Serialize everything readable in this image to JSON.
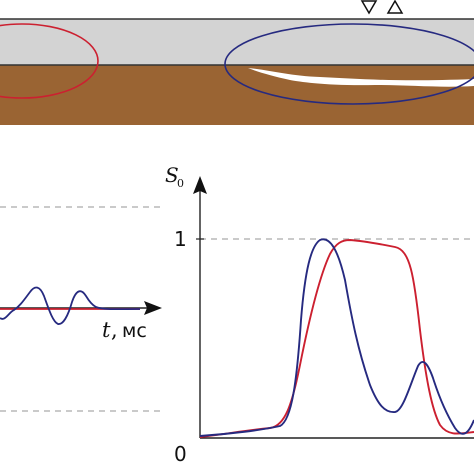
{
  "left_plot": {
    "x_axis_label": "t",
    "x_axis_unit": "мс"
  },
  "right_plot": {
    "y_axis_symbol": "S",
    "y_axis_subscript": "0",
    "ticks": [
      "1",
      "0"
    ]
  },
  "colors": {
    "plate": "#d3d3d3",
    "soil": "#9a6433",
    "red_curve": "#cc2030",
    "blue_curve": "#262a80"
  },
  "icons": [
    "receiver-triangle-down-icon",
    "source-triangle-up-icon"
  ]
}
